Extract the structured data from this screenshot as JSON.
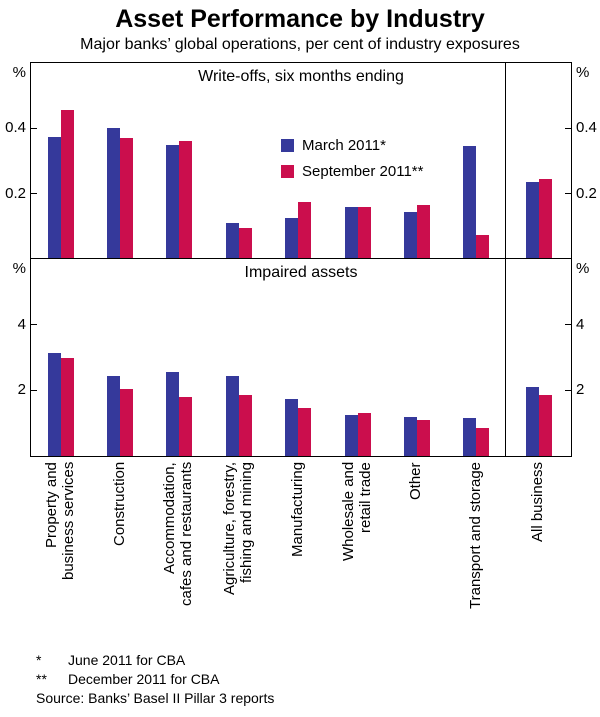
{
  "title": "Asset Performance by Industry",
  "subtitle": "Major banks’ global operations, per cent of industry exposures",
  "colors": {
    "march": "#35399B",
    "september": "#CB0E4D",
    "axis": "#000000"
  },
  "category_labels": [
    [
      "Property and",
      "business services"
    ],
    [
      "Construction"
    ],
    [
      "Accommodation,",
      "cafes and restaurants"
    ],
    [
      "Agriculture, forestry,",
      "fishing and mining"
    ],
    [
      "Manufacturing"
    ],
    [
      "Wholesale and",
      "retail trade"
    ],
    [
      "Other"
    ],
    [
      "Transport and storage"
    ],
    [
      "All business"
    ]
  ],
  "chart_data": [
    {
      "type": "bar",
      "title": "Write-offs, six months ending",
      "unit": "%",
      "ylim": [
        0,
        0.6
      ],
      "yticks": [
        0.2,
        0.4
      ],
      "legend_position": "inside-center",
      "grid": false,
      "categories": [
        "Property and business services",
        "Construction",
        "Accommodation, cafes and restaurants",
        "Agriculture, forestry, fishing and mining",
        "Manufacturing",
        "Wholesale and retail trade",
        "Other",
        "Transport and storage",
        "All business"
      ],
      "series": [
        {
          "name": "March 2011*",
          "color": "#35399B",
          "values": [
            0.375,
            0.4,
            0.35,
            0.11,
            0.125,
            0.16,
            0.145,
            0.345,
            0.235
          ]
        },
        {
          "name": "September 2011**",
          "color": "#CB0E4D",
          "values": [
            0.455,
            0.37,
            0.36,
            0.095,
            0.175,
            0.16,
            0.165,
            0.075,
            0.245
          ]
        }
      ]
    },
    {
      "type": "bar",
      "title": "Impaired assets",
      "unit": "%",
      "ylim": [
        0,
        6
      ],
      "yticks": [
        2,
        4
      ],
      "grid": false,
      "categories": [
        "Property and business services",
        "Construction",
        "Accommodation, cafes and restaurants",
        "Agriculture, forestry, fishing and mining",
        "Manufacturing",
        "Wholesale and retail trade",
        "Other",
        "Transport and storage",
        "All business"
      ],
      "series": [
        {
          "name": "March 2011*",
          "color": "#35399B",
          "values": [
            3.15,
            2.45,
            2.55,
            2.45,
            1.75,
            1.25,
            1.2,
            1.15,
            2.1
          ]
        },
        {
          "name": "September 2011**",
          "color": "#CB0E4D",
          "values": [
            3.0,
            2.05,
            1.8,
            1.85,
            1.45,
            1.3,
            1.1,
            0.85,
            1.85
          ]
        }
      ]
    }
  ],
  "footnotes": [
    {
      "marker": "*",
      "text": "June 2011 for CBA"
    },
    {
      "marker": "**",
      "text": "December 2011 for CBA"
    }
  ],
  "source": "Source: Banks’ Basel II Pillar 3 reports"
}
